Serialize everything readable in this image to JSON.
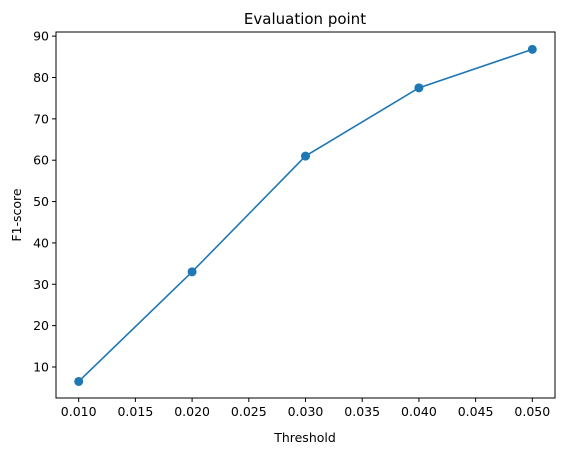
{
  "chart_data": {
    "type": "line",
    "title": "Evaluation point",
    "xlabel": "Threshold",
    "ylabel": "F1-score",
    "x": [
      0.01,
      0.02,
      0.03,
      0.04,
      0.05
    ],
    "series": [
      {
        "values": [
          6.5,
          33.0,
          61.0,
          77.5,
          86.8
        ]
      }
    ],
    "xlim": [
      0.008,
      0.052
    ],
    "ylim": [
      2.5,
      91.0
    ],
    "xticks": [
      0.01,
      0.015,
      0.02,
      0.025,
      0.03,
      0.035,
      0.04,
      0.045,
      0.05
    ],
    "xtick_labels": [
      "0.010",
      "0.015",
      "0.020",
      "0.025",
      "0.030",
      "0.035",
      "0.040",
      "0.045",
      "0.050"
    ],
    "yticks": [
      10,
      20,
      30,
      40,
      50,
      60,
      70,
      80,
      90
    ],
    "ytick_labels": [
      "10",
      "20",
      "30",
      "40",
      "50",
      "60",
      "70",
      "80",
      "90"
    ],
    "markers": true,
    "grid": false,
    "colors": {
      "line": "#1f77b4",
      "axis": "#000000",
      "background": "#ffffff"
    }
  }
}
